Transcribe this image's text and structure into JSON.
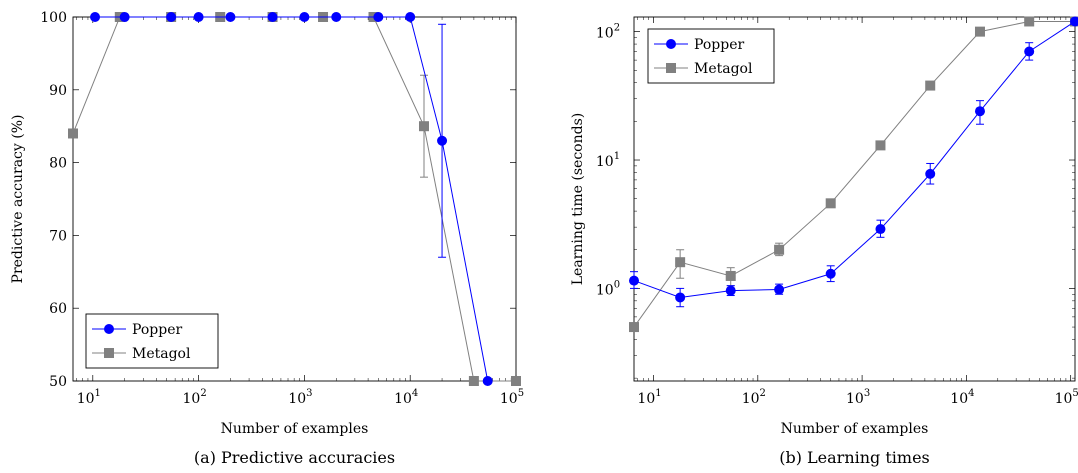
{
  "chart_data": [
    {
      "type": "line",
      "caption": "(a) Predictive accuracies",
      "xlabel": "Number of examples",
      "ylabel": "Predictive accuracy (%)",
      "xscale": "log",
      "xlim": [
        6.5,
        100000
      ],
      "ylim": [
        50,
        100
      ],
      "yticks": [
        "50",
        "60",
        "70",
        "80",
        "90",
        "100"
      ],
      "xticks": [
        {
          "value": 10,
          "base": "10",
          "exp": "1"
        },
        {
          "value": 100,
          "base": "10",
          "exp": "2"
        },
        {
          "value": 1000,
          "base": "10",
          "exp": "3"
        },
        {
          "value": 10000,
          "base": "10",
          "exp": "4"
        },
        {
          "value": 100000,
          "base": "10",
          "exp": "5"
        }
      ],
      "legend_position": "bottom-left",
      "series": [
        {
          "name": "Popper",
          "color": "#0000ff",
          "marker": "circle",
          "points": [
            {
              "x": 10.5,
              "y": 100
            },
            {
              "x": 20,
              "y": 100
            },
            {
              "x": 55,
              "y": 100
            },
            {
              "x": 100,
              "y": 100
            },
            {
              "x": 200,
              "y": 100
            },
            {
              "x": 500,
              "y": 100
            },
            {
              "x": 1000,
              "y": 100
            },
            {
              "x": 2000,
              "y": 100
            },
            {
              "x": 5000,
              "y": 100
            },
            {
              "x": 10000,
              "y": 100
            },
            {
              "x": 20000,
              "y": 83,
              "err": [
                67,
                99
              ]
            },
            {
              "x": 54000,
              "y": 50
            }
          ]
        },
        {
          "name": "Metagol",
          "color": "#808080",
          "marker": "square",
          "points": [
            {
              "x": 6.5,
              "y": 84
            },
            {
              "x": 18,
              "y": 100
            },
            {
              "x": 55,
              "y": 100
            },
            {
              "x": 160,
              "y": 100
            },
            {
              "x": 500,
              "y": 100
            },
            {
              "x": 1500,
              "y": 100
            },
            {
              "x": 4500,
              "y": 100
            },
            {
              "x": 13500,
              "y": 85,
              "err": [
                78,
                92
              ]
            },
            {
              "x": 40000,
              "y": 50
            },
            {
              "x": 100000,
              "y": 50
            }
          ]
        }
      ]
    },
    {
      "type": "line",
      "caption": "(b) Learning times",
      "xlabel": "Number of examples",
      "ylabel": "Learning time (seconds)",
      "xscale": "log",
      "yscale": "log",
      "xlim": [
        6.5,
        110000
      ],
      "ylim": [
        0.19,
        130
      ],
      "yticks": [
        {
          "value": 1,
          "base": "10",
          "exp": "0"
        },
        {
          "value": 10,
          "base": "10",
          "exp": "1"
        },
        {
          "value": 100,
          "base": "10",
          "exp": "2"
        }
      ],
      "xticks": [
        {
          "value": 10,
          "base": "10",
          "exp": "1"
        },
        {
          "value": 100,
          "base": "10",
          "exp": "2"
        },
        {
          "value": 1000,
          "base": "10",
          "exp": "3"
        },
        {
          "value": 10000,
          "base": "10",
          "exp": "4"
        },
        {
          "value": 100000,
          "base": "10",
          "exp": "5"
        }
      ],
      "legend_position": "top-left",
      "series": [
        {
          "name": "Popper",
          "color": "#0000ff",
          "marker": "circle",
          "points": [
            {
              "x": 6.5,
              "y": 1.15,
              "err": [
                1.0,
                1.35
              ]
            },
            {
              "x": 18,
              "y": 0.85,
              "err": [
                0.72,
                1.0
              ]
            },
            {
              "x": 55,
              "y": 0.96,
              "err": [
                0.88,
                1.05
              ]
            },
            {
              "x": 160,
              "y": 0.98,
              "err": [
                0.9,
                1.08
              ]
            },
            {
              "x": 500,
              "y": 1.3,
              "err": [
                1.13,
                1.5
              ]
            },
            {
              "x": 1500,
              "y": 2.9,
              "err": [
                2.5,
                3.4
              ]
            },
            {
              "x": 4500,
              "y": 7.8,
              "err": [
                6.5,
                9.4
              ]
            },
            {
              "x": 13500,
              "y": 24,
              "err": [
                19,
                29
              ]
            },
            {
              "x": 40000,
              "y": 70,
              "err": [
                60,
                82
              ]
            },
            {
              "x": 110000,
              "y": 120
            }
          ]
        },
        {
          "name": "Metagol",
          "color": "#808080",
          "marker": "square",
          "points": [
            {
              "x": 6.5,
              "y": 0.5
            },
            {
              "x": 18,
              "y": 1.6,
              "err": [
                1.2,
                2.0
              ]
            },
            {
              "x": 55,
              "y": 1.25,
              "err": [
                1.05,
                1.45
              ]
            },
            {
              "x": 160,
              "y": 2.0,
              "err": [
                1.8,
                2.25
              ]
            },
            {
              "x": 500,
              "y": 4.6
            },
            {
              "x": 1500,
              "y": 13
            },
            {
              "x": 4500,
              "y": 38
            },
            {
              "x": 13500,
              "y": 100
            },
            {
              "x": 40000,
              "y": 120
            },
            {
              "x": 110000,
              "y": 120
            }
          ]
        }
      ]
    }
  ]
}
